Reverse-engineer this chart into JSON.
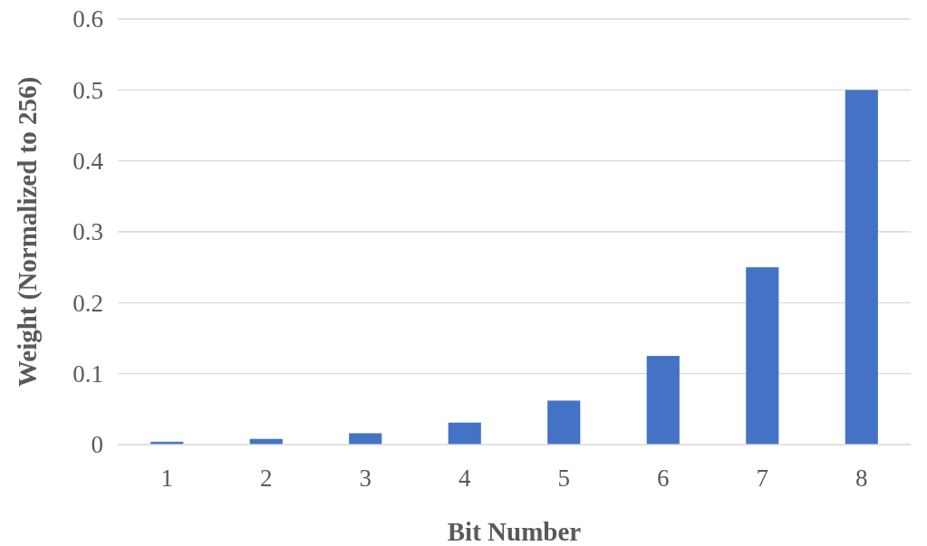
{
  "chart_data": {
    "type": "bar",
    "xlabel": "Bit Number",
    "ylabel": "Weight (Normalized to 256)",
    "categories": [
      "1",
      "2",
      "3",
      "4",
      "5",
      "6",
      "7",
      "8"
    ],
    "values": [
      0.004,
      0.008,
      0.016,
      0.031,
      0.062,
      0.125,
      0.25,
      0.5
    ],
    "color": "#4472c4",
    "ylim": [
      0,
      0.6
    ],
    "yticks": [
      0,
      0.1,
      0.2,
      0.3,
      0.4,
      0.5,
      0.6
    ],
    "grid": "y"
  }
}
